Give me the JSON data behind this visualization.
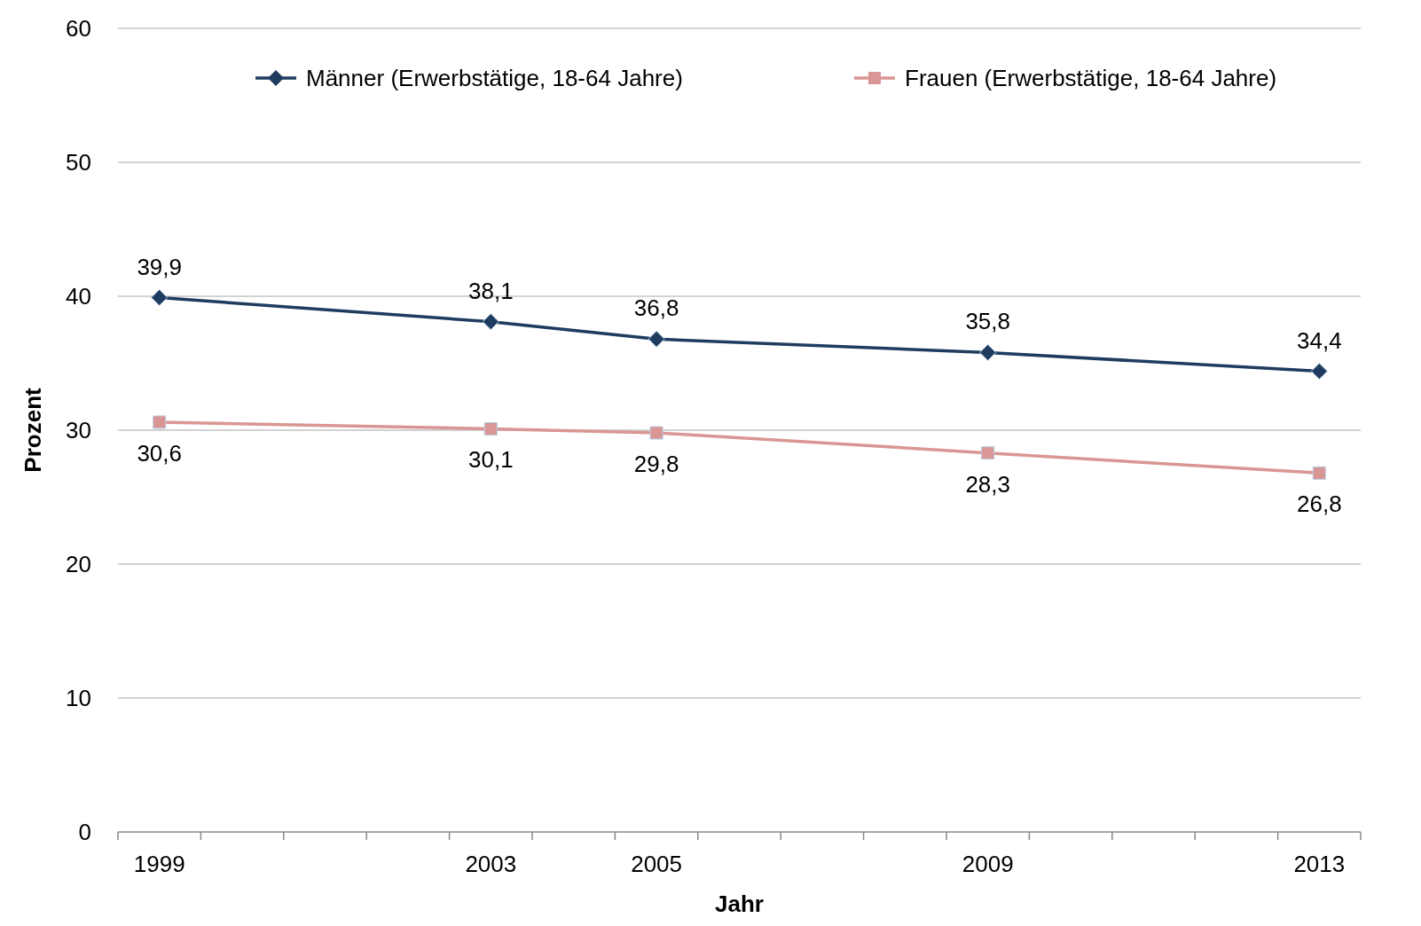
{
  "chart_data": {
    "type": "line",
    "xlabel": "Jahr",
    "ylabel": "Prozent",
    "x": [
      1999,
      2003,
      2005,
      2009,
      2013
    ],
    "xlim": [
      1998.5,
      2013.5
    ],
    "xticks": [
      {
        "value": 1998.5,
        "label": null
      },
      {
        "value": 1999,
        "label": "1999"
      },
      {
        "value": 1999.5,
        "label": null
      },
      {
        "value": 2000.5,
        "label": null
      },
      {
        "value": 2001.5,
        "label": null
      },
      {
        "value": 2002.5,
        "label": null
      },
      {
        "value": 2003,
        "label": "2003"
      },
      {
        "value": 2003.5,
        "label": null
      },
      {
        "value": 2004.5,
        "label": null
      },
      {
        "value": 2005,
        "label": "2005"
      },
      {
        "value": 2005.5,
        "label": null
      },
      {
        "value": 2006.5,
        "label": null
      },
      {
        "value": 2007.5,
        "label": null
      },
      {
        "value": 2008.5,
        "label": null
      },
      {
        "value": 2009,
        "label": "2009"
      },
      {
        "value": 2009.5,
        "label": null
      },
      {
        "value": 2010.5,
        "label": null
      },
      {
        "value": 2011.5,
        "label": null
      },
      {
        "value": 2012.5,
        "label": null
      },
      {
        "value": 2013,
        "label": "2013"
      },
      {
        "value": 2013.5,
        "label": null
      }
    ],
    "ylim": [
      0,
      60
    ],
    "yticks": [
      0,
      10,
      20,
      30,
      40,
      50,
      60
    ],
    "grid": "y",
    "legend": "top",
    "series": [
      {
        "name": "Männer (Erwerbstätige, 18-64 Jahre)",
        "color": "#1f3b5f",
        "marker": "diamond",
        "values": [
          39.9,
          38.1,
          36.8,
          35.8,
          34.4
        ],
        "value_labels": [
          "39,9",
          "38,1",
          "36,8",
          "35,8",
          "34,4"
        ]
      },
      {
        "name": "Frauen (Erwerbstätige, 18-64 Jahre)",
        "color": "#d99694",
        "marker": "square",
        "values": [
          30.6,
          30.1,
          29.8,
          28.3,
          26.8
        ],
        "value_labels": [
          "30,6",
          "30,1",
          "29,8",
          "28,3",
          "26,8"
        ]
      }
    ]
  }
}
